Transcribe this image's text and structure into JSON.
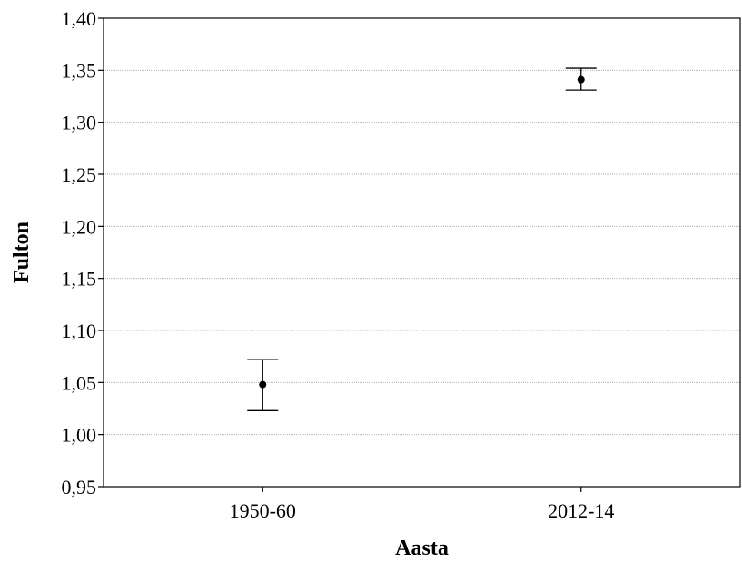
{
  "chart_data": {
    "type": "scatter",
    "title": "",
    "xlabel": "Aasta",
    "ylabel": "Fulton",
    "categories": [
      "1950-60",
      "2012-14"
    ],
    "values": [
      1.048,
      1.341
    ],
    "error_low": [
      1.023,
      1.331
    ],
    "error_high": [
      1.072,
      1.352
    ],
    "ylim": [
      0.95,
      1.4
    ],
    "yticks": [
      0.95,
      1.0,
      1.05,
      1.1,
      1.15,
      1.2,
      1.25,
      1.3,
      1.35,
      1.4
    ],
    "ytick_labels": [
      "0,95",
      "1,00",
      "1,05",
      "1,10",
      "1,15",
      "1,20",
      "1,25",
      "1,30",
      "1,35",
      "1,40"
    ],
    "grid": true,
    "legend": "none"
  }
}
